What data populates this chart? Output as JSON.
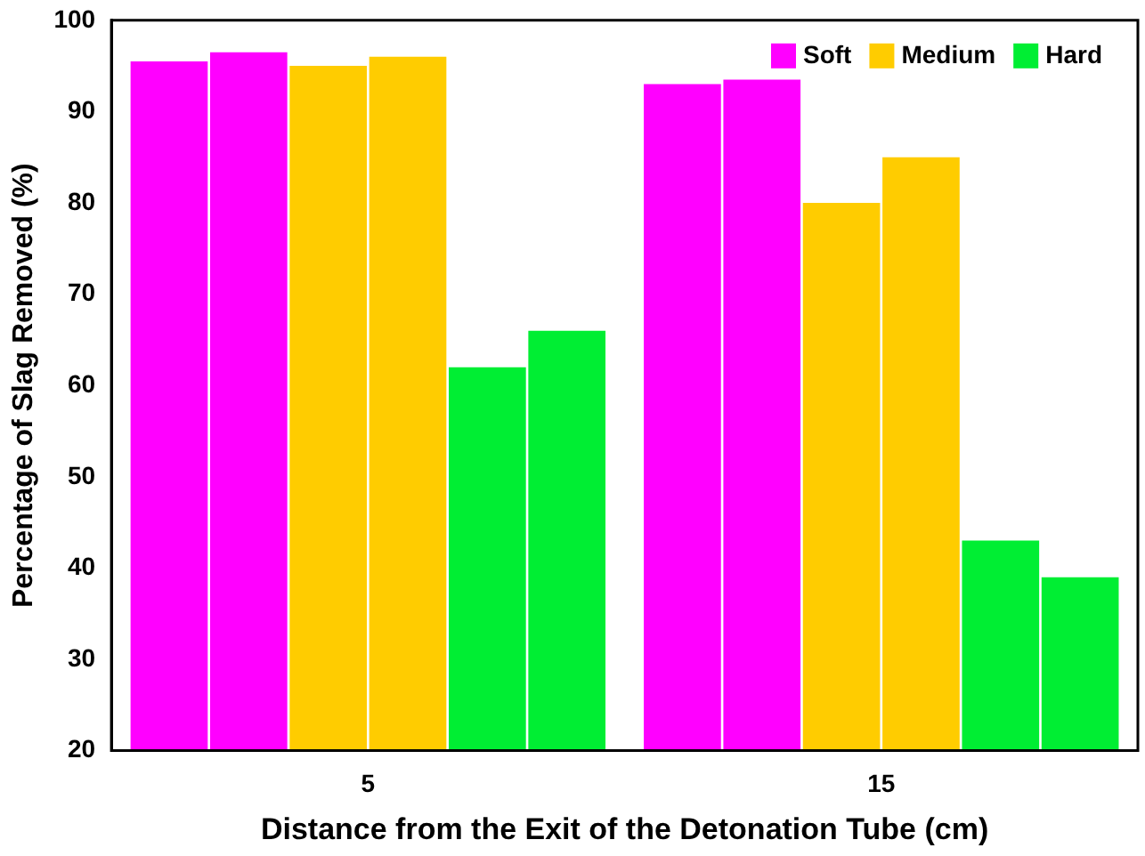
{
  "chart_data": {
    "type": "bar",
    "xlabel": "Distance from the Exit of the Detonation Tube (cm)",
    "ylabel": "Percentage of Slag Removed (%)",
    "categories": [
      "5",
      "15"
    ],
    "series": [
      {
        "name": "Soft",
        "color": "#ff00ff",
        "values": [
          95.5,
          93
        ]
      },
      {
        "color": "#ff00ff",
        "values": [
          96.5,
          93.5
        ]
      },
      {
        "name": "Medium",
        "color": "#ffcc00",
        "values": [
          95,
          80
        ]
      },
      {
        "color": "#ffcc00",
        "values": [
          96,
          85
        ]
      },
      {
        "name": "Hard",
        "color": "#00ee33",
        "values": [
          62,
          43
        ]
      },
      {
        "color": "#00ee33",
        "values": [
          66,
          39
        ]
      }
    ],
    "ylim": [
      20,
      100
    ],
    "yticks": [
      20,
      30,
      40,
      50,
      60,
      70,
      80,
      90,
      100
    ],
    "grid": false,
    "legend": "top right"
  }
}
